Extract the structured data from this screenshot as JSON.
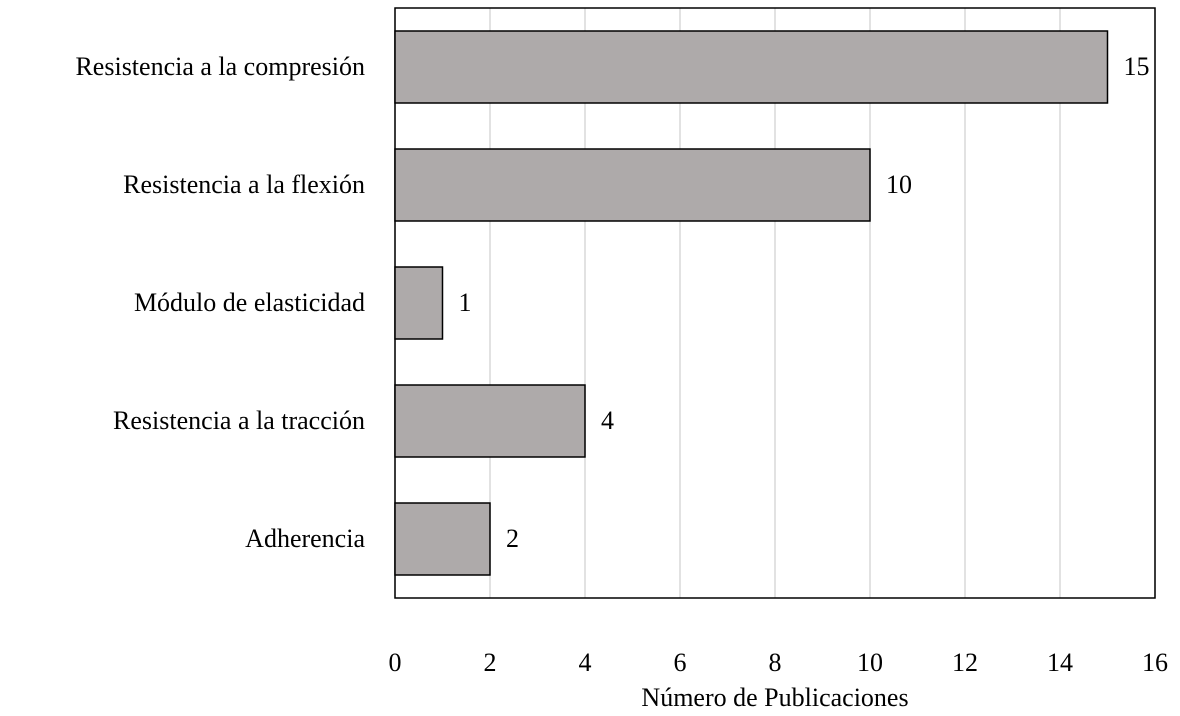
{
  "chart_data": {
    "type": "bar",
    "orientation": "horizontal",
    "x_label": "Número de Publicaciones",
    "categories": [
      "Resistencia a la compresión",
      "Resistencia a la flexión",
      "Módulo de elasticidad",
      "Resistencia a la tracción",
      "Adherencia"
    ],
    "values": [
      15,
      10,
      1,
      4,
      2
    ],
    "color": "#aeaaaa",
    "xlim": [
      0,
      16
    ],
    "xticks": [
      0,
      2,
      4,
      6,
      8,
      10,
      12,
      14,
      16
    ],
    "grid": true
  }
}
